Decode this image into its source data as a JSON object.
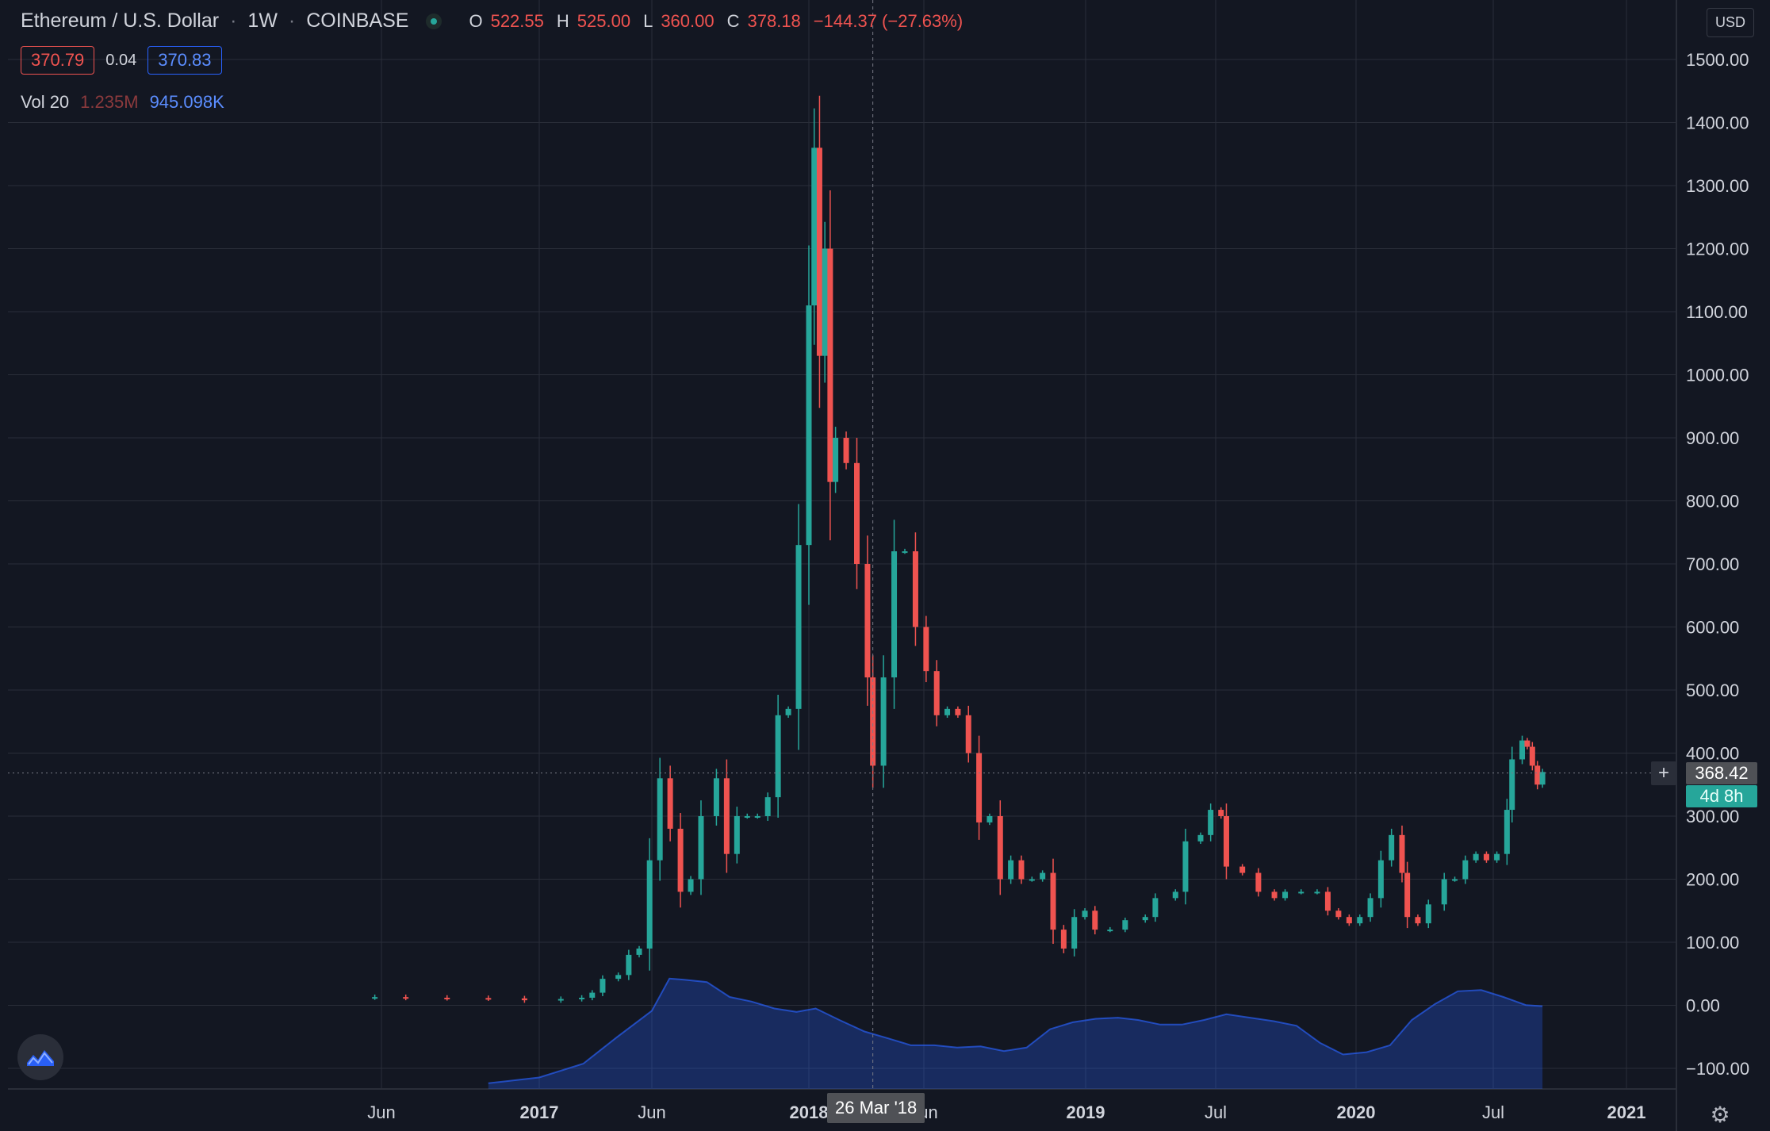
{
  "header": {
    "symbol": "Ethereum / U.S. Dollar",
    "sep1": "·",
    "interval": "1W",
    "sep2": "·",
    "exchange": "COINBASE",
    "ohlc": {
      "o_label": "O",
      "o": "522.55",
      "h_label": "H",
      "h": "525.00",
      "l_label": "L",
      "l": "360.00",
      "c_label": "C",
      "c": "378.18",
      "change": "−144.37 (−27.63%)"
    },
    "sell": "370.79",
    "spread": "0.04",
    "buy": "370.83",
    "vol_label": "Vol 20",
    "vol_a": "1.235M",
    "vol_b": "945.098K",
    "currency": "USD"
  },
  "price_tags": {
    "current": "368.42",
    "countdown": "4d 8h",
    "crosshair_date": "26 Mar '18"
  },
  "colors": {
    "background": "#131722",
    "grid": "#2a2e39",
    "up": "#26a69a",
    "down": "#ef5350",
    "volume_ma": "#2962ff",
    "text": "#d1d4dc",
    "muted": "#787b86"
  },
  "icons": {
    "status": "market-open-dot-icon",
    "logo": "tradingview-logo-icon",
    "settings": "gear-icon",
    "plus": "plus-icon"
  },
  "chart_data": {
    "type": "candlestick",
    "title": "Ethereum / U.S. Dollar · 1W · COINBASE",
    "xlabel": "",
    "ylabel": "",
    "ylim": [
      -100,
      1500
    ],
    "y_ticks": [
      -100,
      0,
      100,
      200,
      300,
      400,
      500,
      600,
      700,
      800,
      900,
      1000,
      1100,
      1200,
      1300,
      1400,
      1500
    ],
    "y_tick_labels": [
      "−100.00",
      "0.00",
      "100.00",
      "200.00",
      "300.00",
      "400.00",
      "500.00",
      "600.00",
      "700.00",
      "800.00",
      "900.00",
      "1000.00",
      "1100.00",
      "1200.00",
      "1300.00",
      "1400.00",
      "1500.00"
    ],
    "x_ticks": [
      {
        "label": "Jun",
        "date": "2016-06-01"
      },
      {
        "label": "2017",
        "date": "2017-01-01"
      },
      {
        "label": "Jun",
        "date": "2017-06-01"
      },
      {
        "label": "2018",
        "date": "2018-01-01"
      },
      {
        "label": "Jun",
        "date": "2018-06-01"
      },
      {
        "label": "2019",
        "date": "2019-01-01"
      },
      {
        "label": "Jul",
        "date": "2019-07-01"
      },
      {
        "label": "2020",
        "date": "2020-01-01"
      },
      {
        "label": "Jul",
        "date": "2020-07-01"
      },
      {
        "label": "2021",
        "date": "2021-01-01"
      }
    ],
    "current_price": 368.42,
    "crosshair_date": "2018-03-26",
    "grid": true,
    "legend": "top-left",
    "series": [
      {
        "name": "Ethereum / U.S. Dollar",
        "type": "candlestick",
        "points": [
          {
            "date": "2016-05-23",
            "close": 13.0
          },
          {
            "date": "2016-07-04",
            "close": 12.0
          },
          {
            "date": "2016-08-29",
            "close": 11.5
          },
          {
            "date": "2016-10-24",
            "close": 11.0
          },
          {
            "date": "2016-12-12",
            "close": 8.0
          },
          {
            "date": "2017-01-30",
            "close": 10.0
          },
          {
            "date": "2017-02-27",
            "close": 12.0
          },
          {
            "date": "2017-03-13",
            "close": 20.0
          },
          {
            "date": "2017-03-27",
            "close": 42.0
          },
          {
            "date": "2017-04-17",
            "close": 48.0
          },
          {
            "date": "2017-05-01",
            "close": 80.0
          },
          {
            "date": "2017-05-15",
            "close": 90.0
          },
          {
            "date": "2017-05-29",
            "close": 230.0
          },
          {
            "date": "2017-06-12",
            "close": 360.0
          },
          {
            "date": "2017-06-26",
            "close": 280.0
          },
          {
            "date": "2017-07-10",
            "close": 180.0
          },
          {
            "date": "2017-07-24",
            "close": 200.0
          },
          {
            "date": "2017-08-07",
            "close": 300.0
          },
          {
            "date": "2017-08-28",
            "close": 360.0
          },
          {
            "date": "2017-09-11",
            "close": 240.0
          },
          {
            "date": "2017-09-25",
            "close": 300.0
          },
          {
            "date": "2017-10-09",
            "close": 300.0
          },
          {
            "date": "2017-10-23",
            "close": 300.0
          },
          {
            "date": "2017-11-06",
            "close": 330.0
          },
          {
            "date": "2017-11-20",
            "close": 460.0
          },
          {
            "date": "2017-12-04",
            "close": 470.0
          },
          {
            "date": "2017-12-18",
            "close": 730.0
          },
          {
            "date": "2018-01-01",
            "close": 1110.0
          },
          {
            "date": "2018-01-08",
            "close": 1360.0
          },
          {
            "date": "2018-01-15",
            "close": 1030.0
          },
          {
            "date": "2018-01-22",
            "close": 1200.0
          },
          {
            "date": "2018-01-29",
            "close": 830.0
          },
          {
            "date": "2018-02-05",
            "close": 900.0
          },
          {
            "date": "2018-02-19",
            "close": 860.0
          },
          {
            "date": "2018-03-05",
            "close": 700.0
          },
          {
            "date": "2018-03-19",
            "close": 520.0
          },
          {
            "date": "2018-03-26",
            "close": 380.0
          },
          {
            "date": "2018-04-09",
            "close": 520.0
          },
          {
            "date": "2018-04-23",
            "close": 720.0
          },
          {
            "date": "2018-05-07",
            "close": 720.0
          },
          {
            "date": "2018-05-21",
            "close": 600.0
          },
          {
            "date": "2018-06-04",
            "close": 530.0
          },
          {
            "date": "2018-06-18",
            "close": 460.0
          },
          {
            "date": "2018-07-02",
            "close": 470.0
          },
          {
            "date": "2018-07-16",
            "close": 460.0
          },
          {
            "date": "2018-07-30",
            "close": 400.0
          },
          {
            "date": "2018-08-13",
            "close": 290.0
          },
          {
            "date": "2018-08-27",
            "close": 300.0
          },
          {
            "date": "2018-09-10",
            "close": 200.0
          },
          {
            "date": "2018-09-24",
            "close": 230.0
          },
          {
            "date": "2018-10-08",
            "close": 200.0
          },
          {
            "date": "2018-10-22",
            "close": 200.0
          },
          {
            "date": "2018-11-05",
            "close": 210.0
          },
          {
            "date": "2018-11-19",
            "close": 120.0
          },
          {
            "date": "2018-12-03",
            "close": 90.0
          },
          {
            "date": "2018-12-17",
            "close": 140.0
          },
          {
            "date": "2018-12-31",
            "close": 150.0
          },
          {
            "date": "2019-01-14",
            "close": 120.0
          },
          {
            "date": "2019-02-04",
            "close": 120.0
          },
          {
            "date": "2019-02-25",
            "close": 135.0
          },
          {
            "date": "2019-03-25",
            "close": 140.0
          },
          {
            "date": "2019-04-08",
            "close": 170.0
          },
          {
            "date": "2019-05-06",
            "close": 180.0
          },
          {
            "date": "2019-05-20",
            "close": 260.0
          },
          {
            "date": "2019-06-10",
            "close": 270.0
          },
          {
            "date": "2019-06-24",
            "close": 310.0
          },
          {
            "date": "2019-07-08",
            "close": 300.0
          },
          {
            "date": "2019-07-15",
            "close": 220.0
          },
          {
            "date": "2019-08-05",
            "close": 210.0
          },
          {
            "date": "2019-08-26",
            "close": 180.0
          },
          {
            "date": "2019-09-16",
            "close": 170.0
          },
          {
            "date": "2019-09-30",
            "close": 180.0
          },
          {
            "date": "2019-10-21",
            "close": 180.0
          },
          {
            "date": "2019-11-11",
            "close": 180.0
          },
          {
            "date": "2019-11-25",
            "close": 150.0
          },
          {
            "date": "2019-12-09",
            "close": 140.0
          },
          {
            "date": "2019-12-23",
            "close": 130.0
          },
          {
            "date": "2020-01-06",
            "close": 140.0
          },
          {
            "date": "2020-01-20",
            "close": 170.0
          },
          {
            "date": "2020-02-03",
            "close": 230.0
          },
          {
            "date": "2020-02-17",
            "close": 270.0
          },
          {
            "date": "2020-03-02",
            "close": 210.0
          },
          {
            "date": "2020-03-09",
            "close": 140.0
          },
          {
            "date": "2020-03-23",
            "close": 130.0
          },
          {
            "date": "2020-04-06",
            "close": 160.0
          },
          {
            "date": "2020-04-27",
            "close": 200.0
          },
          {
            "date": "2020-05-11",
            "close": 200.0
          },
          {
            "date": "2020-05-25",
            "close": 230.0
          },
          {
            "date": "2020-06-08",
            "close": 240.0
          },
          {
            "date": "2020-06-22",
            "close": 230.0
          },
          {
            "date": "2020-07-06",
            "close": 240.0
          },
          {
            "date": "2020-07-20",
            "close": 310.0
          },
          {
            "date": "2020-07-27",
            "close": 390.0
          },
          {
            "date": "2020-08-10",
            "close": 420.0
          },
          {
            "date": "2020-08-17",
            "close": 410.0
          },
          {
            "date": "2020-08-24",
            "close": 380.0
          },
          {
            "date": "2020-08-31",
            "close": 350.0
          },
          {
            "date": "2020-09-07",
            "close": 370.0
          }
        ]
      },
      {
        "name": "Vol 20",
        "type": "area",
        "unit": "relative",
        "points": [
          {
            "date": "2016-10-24",
            "value": 0.05
          },
          {
            "date": "2017-01-01",
            "value": 0.1
          },
          {
            "date": "2017-03-01",
            "value": 0.22
          },
          {
            "date": "2017-04-15",
            "value": 0.45
          },
          {
            "date": "2017-06-01",
            "value": 0.68
          },
          {
            "date": "2017-06-25",
            "value": 0.96
          },
          {
            "date": "2017-07-15",
            "value": 0.95
          },
          {
            "date": "2017-08-15",
            "value": 0.93
          },
          {
            "date": "2017-09-15",
            "value": 0.8
          },
          {
            "date": "2017-10-15",
            "value": 0.76
          },
          {
            "date": "2017-11-15",
            "value": 0.7
          },
          {
            "date": "2017-12-15",
            "value": 0.67
          },
          {
            "date": "2018-01-10",
            "value": 0.7
          },
          {
            "date": "2018-02-10",
            "value": 0.6
          },
          {
            "date": "2018-03-15",
            "value": 0.5
          },
          {
            "date": "2018-04-15",
            "value": 0.44
          },
          {
            "date": "2018-05-15",
            "value": 0.38
          },
          {
            "date": "2018-06-15",
            "value": 0.38
          },
          {
            "date": "2018-07-15",
            "value": 0.36
          },
          {
            "date": "2018-08-15",
            "value": 0.37
          },
          {
            "date": "2018-09-15",
            "value": 0.33
          },
          {
            "date": "2018-10-15",
            "value": 0.36
          },
          {
            "date": "2018-11-15",
            "value": 0.52
          },
          {
            "date": "2018-12-15",
            "value": 0.58
          },
          {
            "date": "2019-01-15",
            "value": 0.61
          },
          {
            "date": "2019-02-15",
            "value": 0.62
          },
          {
            "date": "2019-03-15",
            "value": 0.6
          },
          {
            "date": "2019-04-15",
            "value": 0.56
          },
          {
            "date": "2019-05-15",
            "value": 0.56
          },
          {
            "date": "2019-06-15",
            "value": 0.6
          },
          {
            "date": "2019-07-15",
            "value": 0.65
          },
          {
            "date": "2019-08-15",
            "value": 0.62
          },
          {
            "date": "2019-09-15",
            "value": 0.59
          },
          {
            "date": "2019-10-15",
            "value": 0.55
          },
          {
            "date": "2019-11-15",
            "value": 0.4
          },
          {
            "date": "2019-12-15",
            "value": 0.3
          },
          {
            "date": "2020-01-15",
            "value": 0.32
          },
          {
            "date": "2020-02-15",
            "value": 0.38
          },
          {
            "date": "2020-03-15",
            "value": 0.6
          },
          {
            "date": "2020-04-15",
            "value": 0.74
          },
          {
            "date": "2020-05-15",
            "value": 0.85
          },
          {
            "date": "2020-06-15",
            "value": 0.86
          },
          {
            "date": "2020-07-15",
            "value": 0.8
          },
          {
            "date": "2020-08-15",
            "value": 0.73
          },
          {
            "date": "2020-09-07",
            "value": 0.72
          }
        ]
      }
    ]
  }
}
